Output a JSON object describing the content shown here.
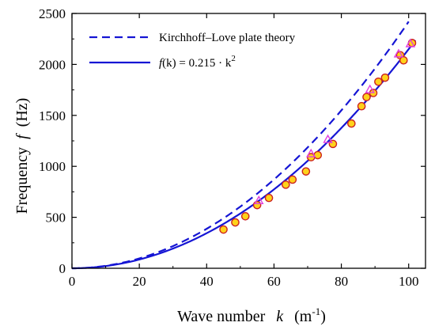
{
  "chart_data": {
    "type": "scatter",
    "xlabel": "Wave number",
    "xlabel_symbol": "k",
    "xlabel_unit": "(m",
    "xlabel_unit_exp": "-1",
    "xlabel_unit_close": ")",
    "ylabel": "Frequency",
    "ylabel_symbol": "f",
    "ylabel_unit": "(Hz)",
    "xlim": [
      0,
      105
    ],
    "ylim": [
      0,
      2500
    ],
    "x_ticks": [
      0,
      20,
      40,
      60,
      80,
      100
    ],
    "y_ticks": [
      0,
      500,
      1000,
      1500,
      2000,
      2500
    ],
    "legend_position": "top-left",
    "legend": {
      "dashed_label": "Kirchhoff–Love plate theory",
      "solid_label_prefix": "f",
      "solid_label_suffix": "(k) = 0.215 · k",
      "solid_label_exp": "2"
    },
    "series": [
      {
        "name": "Kirchhoff–Love plate theory",
        "style": "dashed",
        "color": "#1515d4",
        "coef": 0.242,
        "x_range": [
          0,
          100
        ]
      },
      {
        "name": "f(k) = 0.215 · k2",
        "style": "solid",
        "color": "#1515d4",
        "coef": 0.215,
        "x_range": [
          0,
          102
        ]
      },
      {
        "marker": "circle",
        "fill": "#ffd21a",
        "stroke": "#cc2222",
        "points": [
          [
            45,
            380
          ],
          [
            48.5,
            450
          ],
          [
            51.5,
            510
          ],
          [
            55,
            620
          ],
          [
            58.5,
            690
          ],
          [
            63.5,
            820
          ],
          [
            65.5,
            870
          ],
          [
            69.5,
            950
          ],
          [
            71,
            1090
          ],
          [
            73,
            1110
          ],
          [
            77.5,
            1220
          ],
          [
            83,
            1420
          ],
          [
            86,
            1590
          ],
          [
            87.5,
            1680
          ],
          [
            89.5,
            1720
          ],
          [
            91,
            1830
          ],
          [
            93,
            1870
          ],
          [
            97.5,
            2090
          ],
          [
            98.5,
            2040
          ],
          [
            101,
            2210
          ]
        ]
      },
      {
        "marker": "triangle",
        "fill": "none",
        "stroke": "#e040e0",
        "points": [
          [
            55.5,
            660
          ],
          [
            71,
            1120
          ],
          [
            76,
            1260
          ],
          [
            88.5,
            1750
          ],
          [
            97,
            2100
          ],
          [
            100.5,
            2200
          ]
        ]
      }
    ]
  }
}
